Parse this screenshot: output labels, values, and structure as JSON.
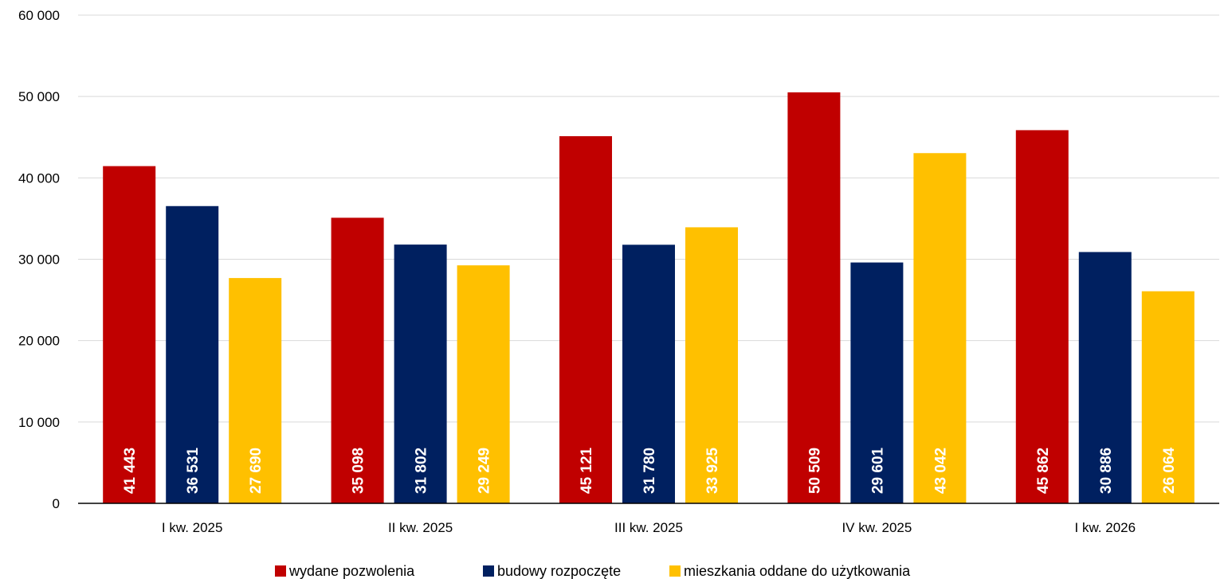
{
  "chart_data": {
    "type": "bar",
    "title": "",
    "xlabel": "",
    "ylabel": "",
    "ylim": [
      0,
      60000
    ],
    "yticks": [
      0,
      10000,
      20000,
      30000,
      40000,
      50000,
      60000
    ],
    "ytick_labels": [
      "0",
      "10 000",
      "20 000",
      "30 000",
      "40 000",
      "50 000",
      "60 000"
    ],
    "grid": true,
    "legend_position": "bottom",
    "categories": [
      "I kw. 2025",
      "II kw. 2025",
      "III kw. 2025",
      "IV kw. 2025",
      "I kw. 2026"
    ],
    "series": [
      {
        "name": "wydane pozwolenia",
        "color": "#C00000",
        "values": [
          41443,
          35098,
          45121,
          50509,
          45862
        ],
        "labels": [
          "41 443",
          "35 098",
          "45 121",
          "50 509",
          "45 862"
        ]
      },
      {
        "name": "budowy rozpoczęte",
        "color": "#002060",
        "values": [
          36531,
          31802,
          31780,
          29601,
          30886
        ],
        "labels": [
          "36 531",
          "31 802",
          "31 780",
          "29 601",
          "30 886"
        ]
      },
      {
        "name": "mieszkania oddane do użytkowania",
        "color": "#FFC000",
        "values": [
          27690,
          29249,
          33925,
          43042,
          26064
        ],
        "labels": [
          "27 690",
          "29 249",
          "33 925",
          "43 042",
          "26 064"
        ]
      }
    ]
  }
}
